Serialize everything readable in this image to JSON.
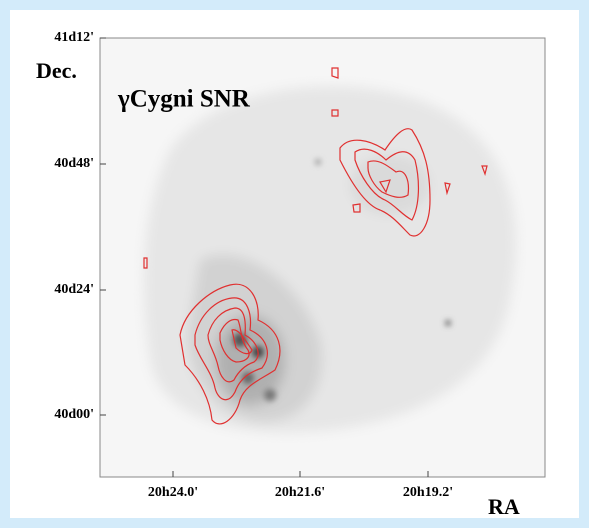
{
  "figure": {
    "title": "γCygni SNR",
    "y_axis_label": "Dec.",
    "x_axis_label": "RA",
    "y_ticks": [
      "41d12'",
      "40d48'",
      "40d24'",
      "40d00'"
    ],
    "x_ticks": [
      "20h24.0'",
      "20h21.6'",
      "20h19.2'"
    ]
  }
}
